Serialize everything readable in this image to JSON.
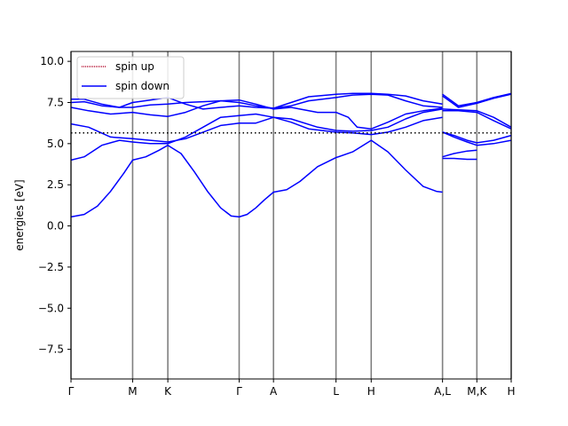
{
  "chart_data": {
    "type": "line",
    "title": "",
    "xlabel": "",
    "ylabel": "energies [eV]",
    "ylim": [
      -9.3,
      10.6
    ],
    "xlim": [
      0,
      5.0
    ],
    "grid": false,
    "legend_position": "upper-left",
    "yticks": [
      -7.5,
      -5.0,
      -2.5,
      0.0,
      2.5,
      5.0,
      7.5,
      10.0
    ],
    "ytick_labels": [
      "−7.5",
      "−5.0",
      "−2.5",
      "0.0",
      "2.5",
      "5.0",
      "7.5",
      "10.0"
    ],
    "kpoints": [
      {
        "label": "Γ",
        "x": 0.0
      },
      {
        "label": "M",
        "x": 0.7
      },
      {
        "label": "K",
        "x": 1.1
      },
      {
        "label": "Γ",
        "x": 1.91
      },
      {
        "label": "A",
        "x": 2.3
      },
      {
        "label": "L",
        "x": 3.01
      },
      {
        "label": "H",
        "x": 3.41
      },
      {
        "label": "A,L",
        "x": 4.22
      },
      {
        "label": "M,K",
        "x": 4.61
      },
      {
        "label": "H",
        "x": 5.0
      }
    ],
    "fermi_level": 5.65,
    "colors": {
      "spin_up": "#b40a2d",
      "spin_down": "#0000ff",
      "kpoint_lines": "#808080",
      "fermi": "#000000"
    },
    "series": [
      {
        "name": "spin up",
        "bands": []
      },
      {
        "name": "spin down",
        "bands": [
          [
            [
              0,
              0.55
            ],
            [
              0.15,
              0.7
            ],
            [
              0.3,
              1.2
            ],
            [
              0.45,
              2.1
            ],
            [
              0.6,
              3.2
            ],
            [
              0.7,
              4.0
            ],
            [
              0.85,
              4.2
            ],
            [
              1.0,
              4.6
            ],
            [
              1.1,
              4.9
            ],
            [
              1.25,
              4.4
            ],
            [
              1.4,
              3.3
            ],
            [
              1.55,
              2.1
            ],
            [
              1.7,
              1.1
            ],
            [
              1.82,
              0.6
            ],
            [
              1.91,
              0.55
            ],
            [
              2.0,
              0.7
            ],
            [
              2.1,
              1.1
            ],
            [
              2.2,
              1.6
            ],
            [
              2.3,
              2.05
            ],
            [
              2.45,
              2.2
            ],
            [
              2.6,
              2.7
            ],
            [
              2.8,
              3.6
            ],
            [
              3.01,
              4.15
            ],
            [
              3.2,
              4.5
            ],
            [
              3.41,
              5.2
            ],
            [
              3.6,
              4.5
            ],
            [
              3.8,
              3.4
            ],
            [
              4.0,
              2.4
            ],
            [
              4.15,
              2.1
            ],
            [
              4.22,
              2.05
            ]
          ],
          [
            [
              0,
              4.0
            ],
            [
              0.15,
              4.2
            ],
            [
              0.35,
              4.9
            ],
            [
              0.55,
              5.2
            ],
            [
              0.7,
              5.1
            ],
            [
              0.9,
              5.0
            ],
            [
              1.1,
              5.0
            ],
            [
              1.3,
              5.4
            ],
            [
              1.5,
              6.0
            ],
            [
              1.7,
              6.6
            ],
            [
              1.91,
              6.7
            ],
            [
              2.1,
              6.8
            ],
            [
              2.3,
              6.6
            ],
            [
              2.5,
              6.3
            ],
            [
              2.7,
              5.9
            ],
            [
              3.01,
              5.7
            ],
            [
              3.2,
              5.65
            ],
            [
              3.41,
              5.55
            ],
            [
              3.6,
              5.7
            ],
            [
              3.8,
              6.0
            ],
            [
              4.0,
              6.4
            ],
            [
              4.22,
              6.6
            ]
          ],
          [
            [
              0,
              6.2
            ],
            [
              0.2,
              6.0
            ],
            [
              0.45,
              5.4
            ],
            [
              0.7,
              5.3
            ],
            [
              0.9,
              5.2
            ],
            [
              1.1,
              5.1
            ],
            [
              1.3,
              5.3
            ],
            [
              1.5,
              5.7
            ],
            [
              1.7,
              6.1
            ],
            [
              1.91,
              6.25
            ],
            [
              2.1,
              6.25
            ],
            [
              2.3,
              6.6
            ],
            [
              2.5,
              6.5
            ],
            [
              2.8,
              6.0
            ],
            [
              3.01,
              5.8
            ],
            [
              3.2,
              5.75
            ],
            [
              3.41,
              5.8
            ],
            [
              3.6,
              6.0
            ],
            [
              3.8,
              6.5
            ],
            [
              4.0,
              6.9
            ],
            [
              4.22,
              7.1
            ]
          ],
          [
            [
              0,
              7.2
            ],
            [
              0.2,
              7.0
            ],
            [
              0.45,
              6.8
            ],
            [
              0.7,
              6.9
            ],
            [
              0.9,
              6.75
            ],
            [
              1.1,
              6.65
            ],
            [
              1.3,
              6.9
            ],
            [
              1.5,
              7.3
            ],
            [
              1.7,
              7.6
            ],
            [
              1.91,
              7.65
            ],
            [
              2.1,
              7.4
            ],
            [
              2.3,
              7.1
            ],
            [
              2.5,
              7.2
            ],
            [
              2.8,
              6.9
            ],
            [
              3.01,
              6.9
            ],
            [
              3.15,
              6.6
            ],
            [
              3.25,
              6.0
            ],
            [
              3.41,
              5.9
            ],
            [
              3.6,
              6.3
            ],
            [
              3.8,
              6.8
            ],
            [
              4.0,
              7.0
            ],
            [
              4.22,
              7.15
            ]
          ],
          [
            [
              0,
              7.5
            ],
            [
              0.15,
              7.55
            ],
            [
              0.35,
              7.3
            ],
            [
              0.55,
              7.2
            ],
            [
              0.7,
              7.2
            ],
            [
              0.9,
              7.35
            ],
            [
              1.1,
              7.4
            ],
            [
              1.3,
              7.5
            ],
            [
              1.5,
              7.55
            ],
            [
              1.7,
              7.6
            ],
            [
              1.91,
              7.5
            ],
            [
              2.1,
              7.3
            ],
            [
              2.3,
              7.15
            ],
            [
              2.5,
              7.3
            ],
            [
              2.7,
              7.6
            ],
            [
              3.01,
              7.8
            ],
            [
              3.2,
              7.95
            ],
            [
              3.41,
              8.0
            ],
            [
              3.6,
              7.95
            ],
            [
              3.8,
              7.6
            ],
            [
              4.0,
              7.3
            ],
            [
              4.22,
              7.2
            ]
          ],
          [
            [
              0,
              7.7
            ],
            [
              0.15,
              7.7
            ],
            [
              0.35,
              7.4
            ],
            [
              0.55,
              7.2
            ],
            [
              0.7,
              7.5
            ],
            [
              0.9,
              7.65
            ],
            [
              1.1,
              7.8
            ],
            [
              1.3,
              7.4
            ],
            [
              1.5,
              7.1
            ],
            [
              1.7,
              7.2
            ],
            [
              1.91,
              7.3
            ],
            [
              2.1,
              7.2
            ],
            [
              2.3,
              7.15
            ],
            [
              2.5,
              7.5
            ],
            [
              2.7,
              7.85
            ],
            [
              3.01,
              8.0
            ],
            [
              3.2,
              8.05
            ],
            [
              3.41,
              8.05
            ],
            [
              3.6,
              8.0
            ],
            [
              3.8,
              7.9
            ],
            [
              4.0,
              7.6
            ],
            [
              4.22,
              7.4
            ]
          ],
          [
            [
              4.22,
              4.1
            ],
            [
              4.35,
              4.1
            ],
            [
              4.5,
              4.05
            ],
            [
              4.61,
              4.05
            ]
          ],
          [
            [
              4.22,
              4.2
            ],
            [
              4.35,
              4.4
            ],
            [
              4.5,
              4.55
            ],
            [
              4.61,
              4.6
            ]
          ],
          [
            [
              4.22,
              5.7
            ],
            [
              4.35,
              5.4
            ],
            [
              4.5,
              5.1
            ],
            [
              4.61,
              4.9
            ],
            [
              4.8,
              5.0
            ],
            [
              5.0,
              5.2
            ]
          ],
          [
            [
              4.22,
              5.7
            ],
            [
              4.35,
              5.5
            ],
            [
              4.5,
              5.2
            ],
            [
              4.61,
              5.05
            ],
            [
              4.8,
              5.2
            ],
            [
              5.0,
              5.5
            ]
          ],
          [
            [
              4.22,
              7.0
            ],
            [
              4.4,
              7.0
            ],
            [
              4.61,
              6.9
            ],
            [
              4.8,
              6.4
            ],
            [
              5.0,
              5.9
            ]
          ],
          [
            [
              4.22,
              7.1
            ],
            [
              4.4,
              7.05
            ],
            [
              4.61,
              7.0
            ],
            [
              4.8,
              6.6
            ],
            [
              5.0,
              6.0
            ]
          ],
          [
            [
              4.22,
              8.0
            ],
            [
              4.4,
              7.3
            ],
            [
              4.61,
              7.5
            ],
            [
              4.8,
              7.8
            ],
            [
              5.0,
              8.05
            ]
          ],
          [
            [
              4.22,
              7.9
            ],
            [
              4.4,
              7.2
            ],
            [
              4.61,
              7.45
            ],
            [
              4.8,
              7.75
            ],
            [
              5.0,
              8.0
            ]
          ]
        ]
      }
    ]
  }
}
